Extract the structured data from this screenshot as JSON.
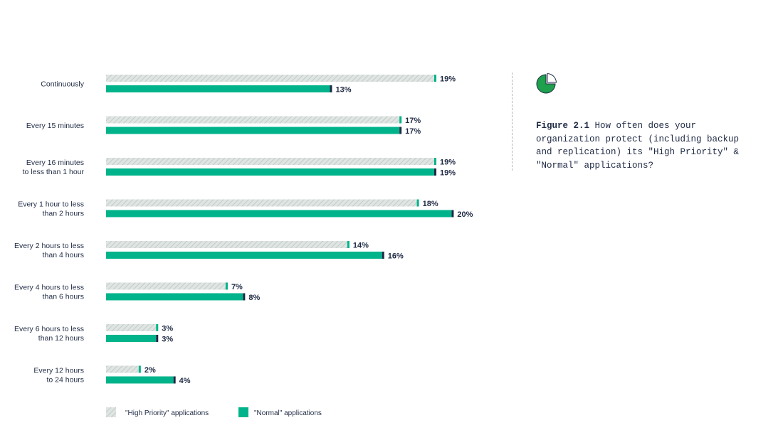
{
  "chart_data": {
    "type": "bar",
    "orientation": "horizontal",
    "categories": [
      [
        "Continuously"
      ],
      [
        "Every 15 minutes"
      ],
      [
        "Every 16 minutes",
        "to less than 1 hour"
      ],
      [
        "Every 1 hour to less",
        "than 2 hours"
      ],
      [
        "Every 2 hours to less",
        "than 4 hours"
      ],
      [
        "Every 4 hours to less",
        "than 6 hours"
      ],
      [
        "Every 6 hours to less",
        "than 12 hours"
      ],
      [
        "Every 12 hours",
        "to 24 hours"
      ]
    ],
    "series": [
      {
        "name": "\"High Priority\" applications",
        "values": [
          19,
          17,
          19,
          18,
          14,
          7,
          3,
          2
        ],
        "fill": "#dfe5e2",
        "hatch": "#c3cbc7",
        "end_color": "#00b38a"
      },
      {
        "name": "\"Normal\" applications",
        "values": [
          13,
          17,
          19,
          20,
          16,
          8,
          3,
          4
        ],
        "fill": "#00b38a",
        "end_color": "#1f2a44"
      }
    ],
    "value_suffix": "%",
    "xlim": [
      0,
      20
    ],
    "legend_position": "bottom-left",
    "grid": false
  },
  "caption": {
    "figure_number": "Figure 2.1",
    "text": " How often does your organization protect (including backup and replication) its \"High Priority\" & \"Normal\" applications?"
  },
  "icon": {
    "name": "pie-chart-icon",
    "accent": "#00b38a",
    "outline": "#1f2a44"
  }
}
